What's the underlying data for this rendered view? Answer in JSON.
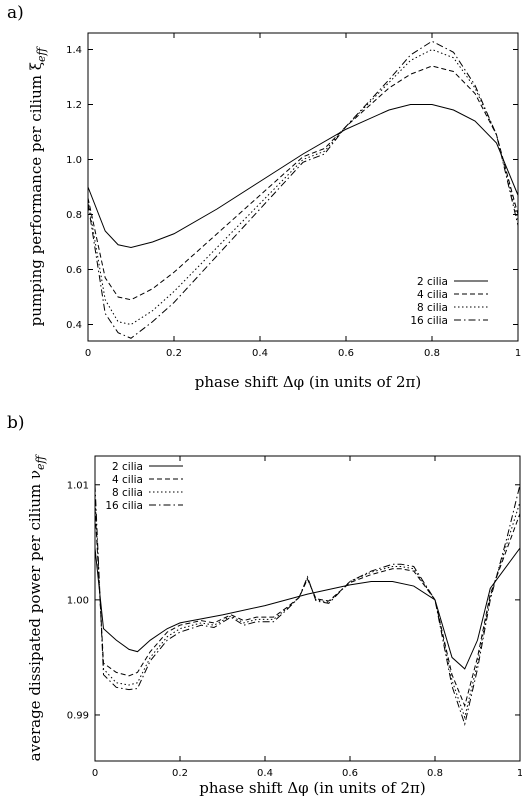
{
  "chart_data": [
    {
      "panel_label": "a)",
      "type": "line",
      "xlabel": "phase shift  Δφ  (in units of 2π)",
      "ylabel_main": "pumping performance per cilium ξ",
      "ylabel_sub": "eff",
      "xlim": [
        0,
        1
      ],
      "ylim": [
        0.34,
        1.46
      ],
      "xticks": [
        0,
        0.2,
        0.4,
        0.6,
        0.8,
        1
      ],
      "yticks": [
        0.4,
        0.6,
        0.8,
        1.0,
        1.2,
        1.4
      ],
      "xtick_labels": [
        "0",
        "0.2",
        "0.4",
        "0.6",
        "0.8",
        "1"
      ],
      "ytick_labels": [
        "0.4",
        "0.6",
        "0.8",
        "1.0",
        "1.2",
        "1.4"
      ],
      "legend_position": "bottom-right",
      "series": [
        {
          "name": "2 cilia",
          "dash": "solid",
          "x": [
            0,
            0.04,
            0.07,
            0.1,
            0.15,
            0.2,
            0.3,
            0.4,
            0.5,
            0.6,
            0.7,
            0.75,
            0.8,
            0.85,
            0.9,
            0.95,
            1.0
          ],
          "y": [
            0.9,
            0.74,
            0.69,
            0.68,
            0.7,
            0.73,
            0.82,
            0.92,
            1.02,
            1.11,
            1.18,
            1.2,
            1.2,
            1.18,
            1.14,
            1.06,
            0.87
          ]
        },
        {
          "name": "4 cilia",
          "dash": "dashed",
          "x": [
            0,
            0.04,
            0.07,
            0.1,
            0.15,
            0.2,
            0.3,
            0.4,
            0.5,
            0.55,
            0.6,
            0.7,
            0.75,
            0.8,
            0.85,
            0.9,
            0.95,
            1.0
          ],
          "y": [
            0.86,
            0.57,
            0.5,
            0.49,
            0.53,
            0.59,
            0.73,
            0.87,
            1.01,
            1.04,
            1.12,
            1.26,
            1.31,
            1.34,
            1.32,
            1.24,
            1.09,
            0.8
          ]
        },
        {
          "name": "8 cilia",
          "dash": "dotted",
          "x": [
            0,
            0.04,
            0.07,
            0.1,
            0.15,
            0.2,
            0.3,
            0.4,
            0.5,
            0.55,
            0.6,
            0.7,
            0.75,
            0.8,
            0.85,
            0.9,
            0.95,
            1.0
          ],
          "y": [
            0.85,
            0.49,
            0.41,
            0.4,
            0.45,
            0.52,
            0.68,
            0.84,
            1.0,
            1.03,
            1.12,
            1.28,
            1.36,
            1.4,
            1.37,
            1.26,
            1.09,
            0.78
          ]
        },
        {
          "name": "16 cilia",
          "dash": "dashdot",
          "x": [
            0,
            0.04,
            0.07,
            0.1,
            0.15,
            0.2,
            0.3,
            0.4,
            0.5,
            0.55,
            0.6,
            0.7,
            0.75,
            0.8,
            0.85,
            0.9,
            0.95,
            1.0
          ],
          "y": [
            0.84,
            0.44,
            0.37,
            0.35,
            0.41,
            0.48,
            0.65,
            0.82,
            0.99,
            1.02,
            1.12,
            1.29,
            1.38,
            1.43,
            1.39,
            1.27,
            1.09,
            0.76
          ]
        }
      ]
    },
    {
      "panel_label": "b)",
      "type": "line",
      "xlabel": "phase shift  Δφ  (in units of 2π)",
      "ylabel_main": "average dissipated power per cilium ν",
      "ylabel_sub": "eff",
      "xlim": [
        0,
        1
      ],
      "ylim": [
        0.986,
        1.0125
      ],
      "xticks": [
        0,
        0.2,
        0.4,
        0.6,
        0.8,
        1
      ],
      "yticks": [
        0.99,
        1.0,
        1.01
      ],
      "xtick_labels": [
        "0",
        "0.2",
        "0.4",
        "0.6",
        "0.8",
        "1"
      ],
      "ytick_labels": [
        "0.99",
        "1.00",
        "1.01"
      ],
      "legend_position": "top-left",
      "series": [
        {
          "name": "2 cilia",
          "dash": "solid",
          "x": [
            0,
            0.02,
            0.05,
            0.08,
            0.1,
            0.13,
            0.17,
            0.2,
            0.3,
            0.4,
            0.5,
            0.6,
            0.65,
            0.7,
            0.75,
            0.8,
            0.84,
            0.87,
            0.9,
            0.93,
            0.97,
            1.0
          ],
          "y": [
            1.0045,
            0.9975,
            0.9965,
            0.9957,
            0.9955,
            0.9965,
            0.9975,
            0.998,
            0.9987,
            0.9995,
            1.0005,
            1.0013,
            1.0016,
            1.0016,
            1.0012,
            1.0,
            0.995,
            0.994,
            0.9965,
            1.001,
            1.003,
            1.0045
          ]
        },
        {
          "name": "4 cilia",
          "dash": "dashed",
          "x": [
            0,
            0.02,
            0.05,
            0.08,
            0.1,
            0.13,
            0.17,
            0.2,
            0.25,
            0.28,
            0.32,
            0.35,
            0.38,
            0.42,
            0.45,
            0.48,
            0.5,
            0.52,
            0.55,
            0.6,
            0.65,
            0.7,
            0.72,
            0.75,
            0.8,
            0.84,
            0.87,
            0.9,
            0.93,
            0.97,
            1.0
          ],
          "y": [
            1.008,
            0.9945,
            0.9937,
            0.9934,
            0.9937,
            0.9955,
            0.9972,
            0.9978,
            0.9982,
            0.998,
            0.9987,
            0.9982,
            0.9985,
            0.9985,
            0.9993,
            1.0002,
            1.0018,
            1.0001,
            0.9999,
            1.0015,
            1.0022,
            1.0027,
            1.0027,
            1.0025,
            1.0,
            0.9935,
            0.9908,
            0.995,
            1.0005,
            1.0045,
            1.0075
          ]
        },
        {
          "name": "8 cilia",
          "dash": "dotted",
          "x": [
            0,
            0.02,
            0.05,
            0.08,
            0.1,
            0.13,
            0.17,
            0.2,
            0.25,
            0.28,
            0.32,
            0.35,
            0.38,
            0.42,
            0.45,
            0.48,
            0.5,
            0.52,
            0.55,
            0.6,
            0.65,
            0.7,
            0.72,
            0.75,
            0.8,
            0.84,
            0.87,
            0.9,
            0.93,
            0.97,
            1.0
          ],
          "y": [
            1.009,
            0.994,
            0.9928,
            0.9926,
            0.9928,
            0.995,
            0.9968,
            0.9975,
            0.998,
            0.9978,
            0.9986,
            0.998,
            0.9983,
            0.9983,
            0.9992,
            1.0002,
            1.0019,
            1.0,
            0.9998,
            1.0016,
            1.0024,
            1.0029,
            1.0029,
            1.0027,
            1.0,
            0.993,
            0.9898,
            0.9945,
            1.0003,
            1.005,
            1.0085
          ]
        },
        {
          "name": "16 cilia",
          "dash": "dashdot",
          "x": [
            0,
            0.02,
            0.05,
            0.08,
            0.1,
            0.13,
            0.17,
            0.2,
            0.25,
            0.28,
            0.32,
            0.35,
            0.38,
            0.42,
            0.45,
            0.48,
            0.5,
            0.52,
            0.55,
            0.6,
            0.65,
            0.7,
            0.72,
            0.75,
            0.8,
            0.84,
            0.87,
            0.9,
            0.93,
            0.97,
            1.0
          ],
          "y": [
            1.01,
            0.9935,
            0.9924,
            0.9922,
            0.9923,
            0.9947,
            0.9965,
            0.9972,
            0.9978,
            0.9976,
            0.9985,
            0.9978,
            0.9981,
            0.9981,
            0.9991,
            1.0002,
            1.002,
            0.9999,
            0.9997,
            1.0016,
            1.0025,
            1.0031,
            1.0031,
            1.0029,
            1.0,
            0.9925,
            0.9892,
            0.994,
            1.0,
            1.0055,
            1.01
          ]
        }
      ]
    }
  ]
}
